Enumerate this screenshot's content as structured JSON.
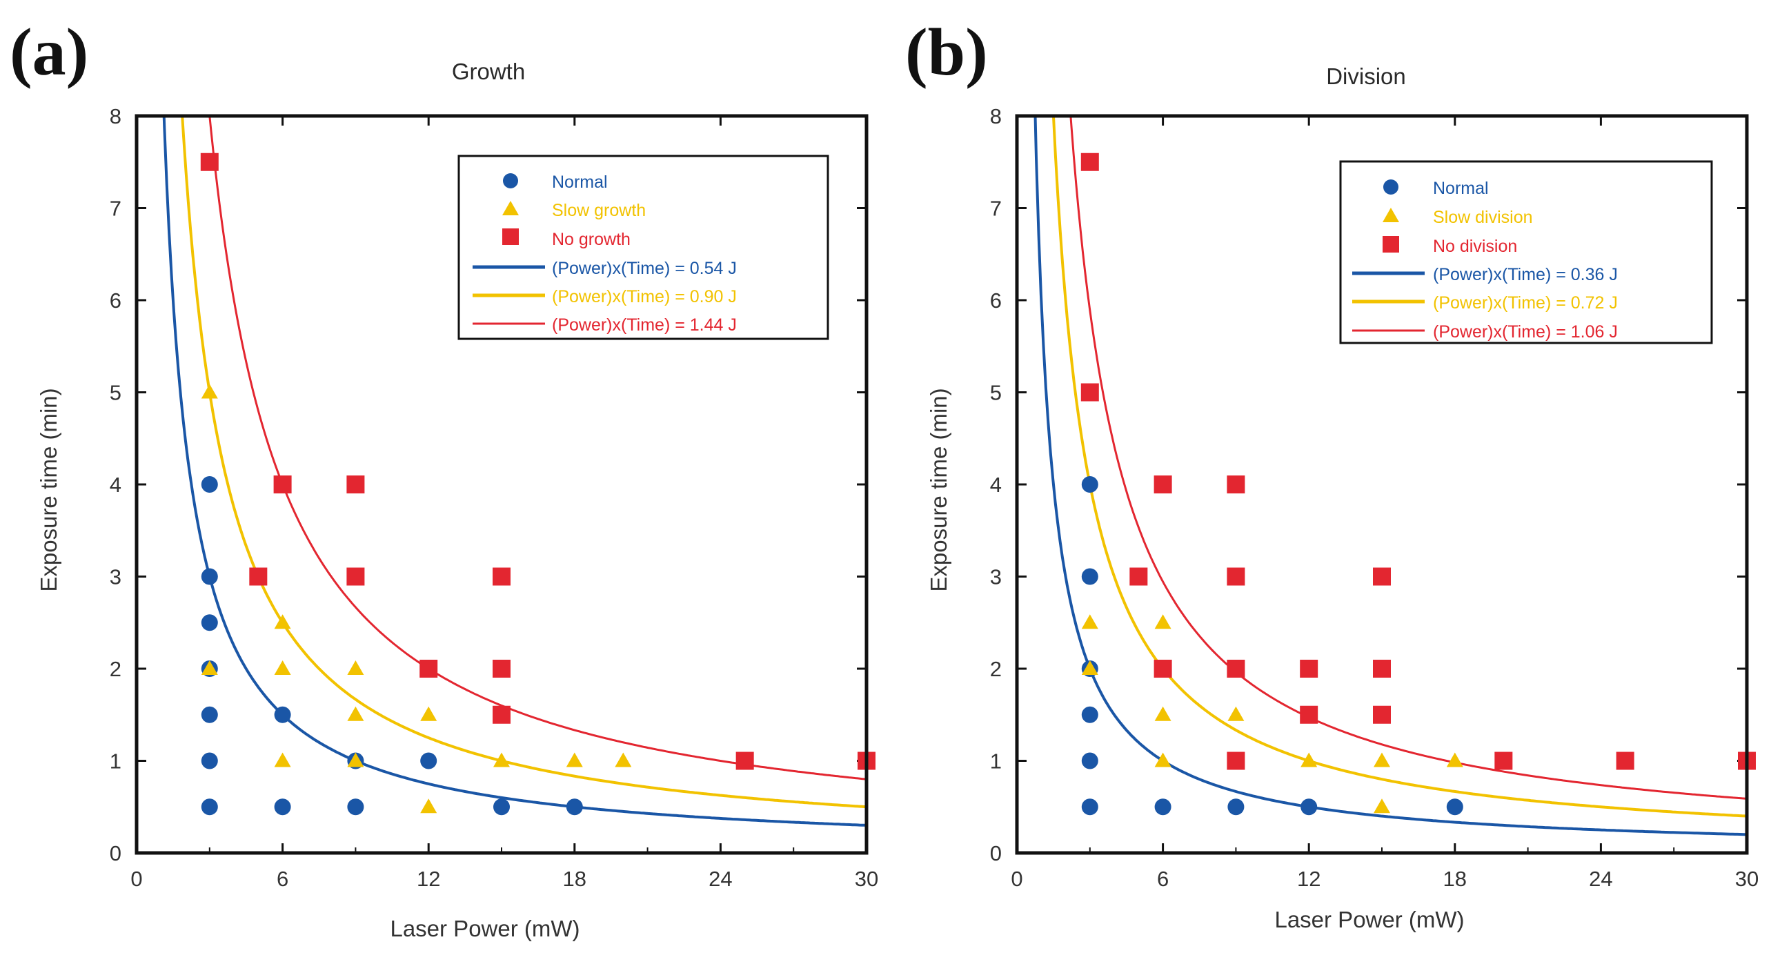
{
  "colors": {
    "normal": "#1a56a6",
    "slow": "#f2c200",
    "no": "#e32630",
    "axis": "#111111"
  },
  "chart_data": [
    {
      "panel_label": "(a)",
      "type": "scatter",
      "title": "Growth",
      "xlabel": "Laser Power (mW)",
      "ylabel": "Exposure time (min)",
      "xlim": [
        0,
        30
      ],
      "ylim": [
        0,
        8
      ],
      "xticks": [
        0,
        6,
        12,
        18,
        24,
        30
      ],
      "yticks": [
        0,
        1,
        2,
        3,
        4,
        5,
        6,
        7,
        8
      ],
      "legend_position": "top-right",
      "series": [
        {
          "name": "Normal",
          "marker": "circle",
          "color": "#1a56a6",
          "points": [
            [
              3,
              4
            ],
            [
              3,
              3
            ],
            [
              3,
              2.5
            ],
            [
              3,
              2
            ],
            [
              3,
              1.5
            ],
            [
              3,
              1
            ],
            [
              3,
              0.5
            ],
            [
              6,
              1.5
            ],
            [
              6,
              0.5
            ],
            [
              9,
              1
            ],
            [
              9,
              0.5
            ],
            [
              12,
              1
            ],
            [
              15,
              0.5
            ],
            [
              18,
              0.5
            ]
          ]
        },
        {
          "name": "Slow growth",
          "marker": "triangle",
          "color": "#f2c200",
          "points": [
            [
              3,
              5
            ],
            [
              3,
              2
            ],
            [
              6,
              2.5
            ],
            [
              6,
              2
            ],
            [
              6,
              1
            ],
            [
              9,
              2
            ],
            [
              9,
              1.5
            ],
            [
              9,
              1
            ],
            [
              12,
              1.5
            ],
            [
              12,
              0.5
            ],
            [
              15,
              1
            ],
            [
              18,
              1
            ],
            [
              20,
              1
            ]
          ]
        },
        {
          "name": "No growth",
          "marker": "square",
          "color": "#e32630",
          "points": [
            [
              3,
              7.5
            ],
            [
              6,
              4
            ],
            [
              9,
              4
            ],
            [
              5,
              3
            ],
            [
              9,
              3
            ],
            [
              15,
              3
            ],
            [
              12,
              2
            ],
            [
              15,
              2
            ],
            [
              15,
              1.5
            ],
            [
              25,
              1
            ],
            [
              30,
              1
            ]
          ]
        }
      ],
      "curves": [
        {
          "name": "(Power)x(Time) = 0.54 J",
          "energy_J": 0.54,
          "color": "#1a56a6"
        },
        {
          "name": "(Power)x(Time) = 0.90 J",
          "energy_J": 0.9,
          "color": "#f2c200"
        },
        {
          "name": "(Power)x(Time) = 1.44 J",
          "energy_J": 1.44,
          "color": "#e32630"
        }
      ]
    },
    {
      "panel_label": "(b)",
      "type": "scatter",
      "title": "Division",
      "xlabel": "Laser Power (mW)",
      "ylabel": "Exposure time (min)",
      "xlim": [
        0,
        30
      ],
      "ylim": [
        0,
        8
      ],
      "xticks": [
        0,
        6,
        12,
        18,
        24,
        30
      ],
      "yticks": [
        0,
        1,
        2,
        3,
        4,
        5,
        6,
        7,
        8
      ],
      "legend_position": "top-right",
      "series": [
        {
          "name": "Normal",
          "marker": "circle",
          "color": "#1a56a6",
          "points": [
            [
              3,
              4
            ],
            [
              3,
              3
            ],
            [
              3,
              2
            ],
            [
              3,
              1.5
            ],
            [
              3,
              1
            ],
            [
              3,
              0.5
            ],
            [
              6,
              0.5
            ],
            [
              9,
              0.5
            ],
            [
              12,
              0.5
            ],
            [
              18,
              0.5
            ]
          ]
        },
        {
          "name": "Slow division",
          "marker": "triangle",
          "color": "#f2c200",
          "points": [
            [
              3,
              2.5
            ],
            [
              3,
              2
            ],
            [
              6,
              2.5
            ],
            [
              6,
              1.5
            ],
            [
              6,
              1
            ],
            [
              9,
              1.5
            ],
            [
              12,
              1
            ],
            [
              15,
              1
            ],
            [
              15,
              0.5
            ],
            [
              18,
              1
            ]
          ]
        },
        {
          "name": "No division",
          "marker": "square",
          "color": "#e32630",
          "points": [
            [
              3,
              7.5
            ],
            [
              3,
              5
            ],
            [
              6,
              4
            ],
            [
              9,
              4
            ],
            [
              5,
              3
            ],
            [
              9,
              3
            ],
            [
              15,
              3
            ],
            [
              6,
              2
            ],
            [
              9,
              2
            ],
            [
              12,
              2
            ],
            [
              15,
              2
            ],
            [
              12,
              1.5
            ],
            [
              15,
              1.5
            ],
            [
              9,
              1
            ],
            [
              20,
              1
            ],
            [
              25,
              1
            ],
            [
              30,
              1
            ]
          ]
        }
      ],
      "curves": [
        {
          "name": "(Power)x(Time) = 0.36 J",
          "energy_J": 0.36,
          "color": "#1a56a6"
        },
        {
          "name": "(Power)x(Time) = 0.72 J",
          "energy_J": 0.72,
          "color": "#f2c200"
        },
        {
          "name": "(Power)x(Time) = 1.06 J",
          "energy_J": 1.06,
          "color": "#e32630"
        }
      ]
    }
  ]
}
